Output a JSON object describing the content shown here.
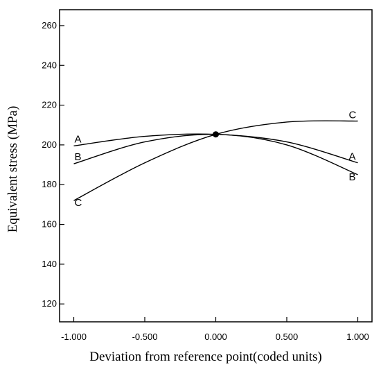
{
  "chart_data": {
    "type": "line",
    "xlabel": "Deviation from reference point(coded units)",
    "ylabel": "Equivalent stress (MPa)",
    "xlim": [
      -1.1,
      1.1
    ],
    "ylim": [
      111,
      268
    ],
    "x_ticks": [
      -1.0,
      -0.5,
      0.0,
      0.5,
      1.0
    ],
    "x_tick_labels": [
      "-1.000",
      "-0.500",
      "0.000",
      "0.500",
      "1.000"
    ],
    "y_ticks": [
      120,
      140,
      160,
      180,
      200,
      220,
      240,
      260
    ],
    "y_tick_labels": [
      "120",
      "140",
      "160",
      "180",
      "200",
      "220",
      "240",
      "260"
    ],
    "grid": false,
    "reference_point": {
      "x": 0.0,
      "y": 205.3
    },
    "series": [
      {
        "name": "A",
        "x": [
          -1.0,
          -0.5,
          0.0,
          0.5,
          1.0
        ],
        "y": [
          199.5,
          204.3,
          205.3,
          201.5,
          191.0
        ],
        "color": "#000000"
      },
      {
        "name": "B",
        "x": [
          -1.0,
          -0.5,
          0.0,
          0.5,
          1.0
        ],
        "y": [
          190.5,
          201.5,
          205.3,
          200.0,
          185.0
        ],
        "color": "#000000"
      },
      {
        "name": "C",
        "x": [
          -1.0,
          -0.5,
          0.0,
          0.5,
          1.0
        ],
        "y": [
          172.0,
          191.0,
          205.3,
          211.5,
          212.0
        ],
        "color": "#000000"
      }
    ]
  }
}
